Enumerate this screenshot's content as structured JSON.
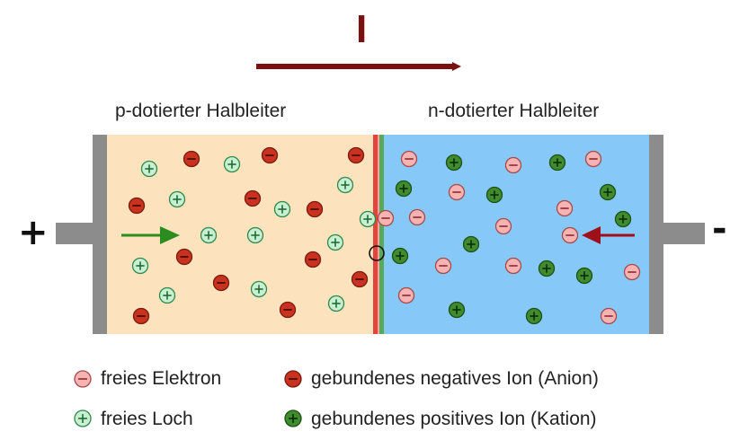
{
  "current_symbol": "I",
  "regions": {
    "p_label": "p-dotierter Halbleiter",
    "n_label": "n-dotierter Halbleiter"
  },
  "terminals": {
    "left": "+",
    "right": "-"
  },
  "legend": [
    {
      "label": "freies Elektron",
      "icon": "free-electron-icon"
    },
    {
      "label": "freies Loch",
      "icon": "free-hole-icon"
    },
    {
      "label": "gebundenes negatives Ion (Anion)",
      "icon": "anion-icon"
    },
    {
      "label": "gebundenes positives Ion (Kation)",
      "icon": "cation-icon"
    }
  ],
  "colors": {
    "p_region": "#fce3bd",
    "n_region": "#86c8f7",
    "current_arrow": "#7a1010",
    "hole": "#c9efd3",
    "electron": "#f6b3b3",
    "anion": "#c8321e",
    "cation": "#3f8c2e",
    "electrode": "#8c8c8c",
    "junction_red": "#e0443a",
    "junction_green": "#5aa85a",
    "p_arrow": "#2c8c1e",
    "n_arrow": "#a0101a"
  }
}
